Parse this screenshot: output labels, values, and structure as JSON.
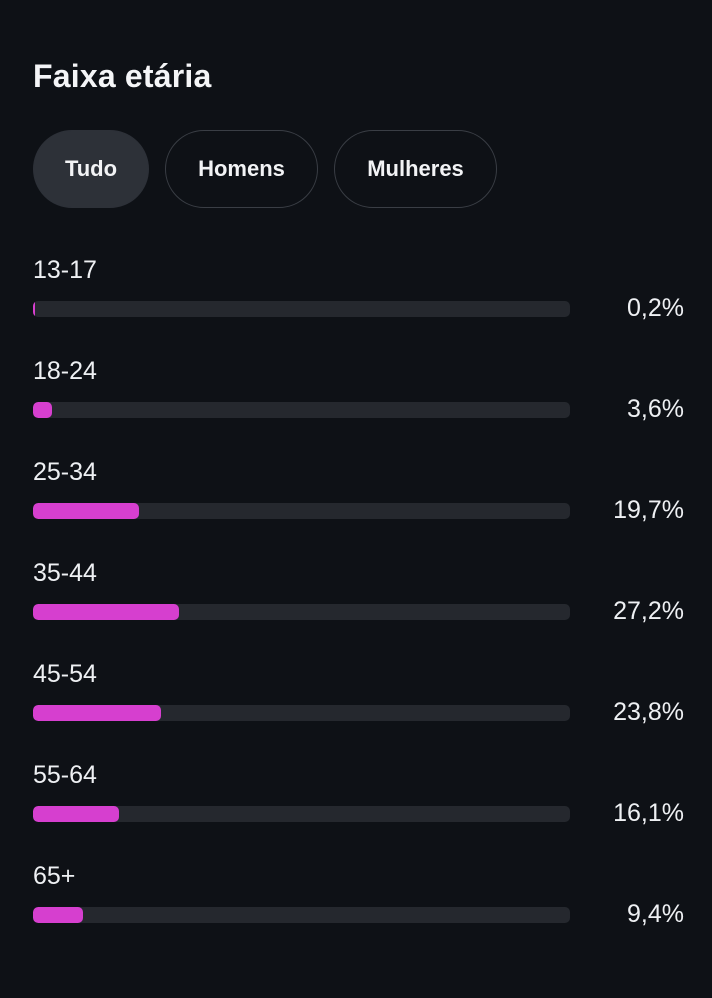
{
  "title": "Faixa etária",
  "filters": [
    {
      "label": "Tudo",
      "active": true
    },
    {
      "label": "Homens",
      "active": false
    },
    {
      "label": "Mulheres",
      "active": false
    }
  ],
  "accent_color": "#d63fcf",
  "age_groups": [
    {
      "label": "13-17",
      "percent_text": "0,2%",
      "fraction": 0.0074
    },
    {
      "label": "18-24",
      "percent_text": "3,6%",
      "fraction": 0.1324
    },
    {
      "label": "25-34",
      "percent_text": "19,7%",
      "fraction": 0.7243
    },
    {
      "label": "35-44",
      "percent_text": "27,2%",
      "fraction": 1.0
    },
    {
      "label": "45-54",
      "percent_text": "23,8%",
      "fraction": 0.875
    },
    {
      "label": "55-64",
      "percent_text": "16,1%",
      "fraction": 0.5919
    },
    {
      "label": "65+",
      "percent_text": "9,4%",
      "fraction": 0.3456
    }
  ]
}
